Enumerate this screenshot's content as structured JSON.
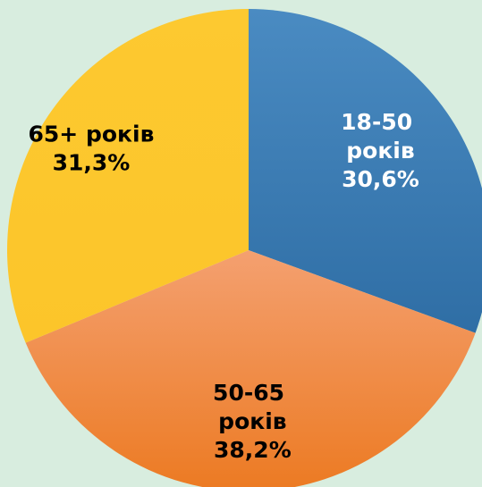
{
  "chart_data": {
    "type": "pie",
    "categories": [
      "18-50 років",
      "50-65 років",
      "65+ років"
    ],
    "values": [
      30.6,
      38.2,
      31.3
    ],
    "value_labels": [
      "30,6%",
      "38,2%",
      "31,3%"
    ],
    "colors": [
      "#3b7bb3",
      "#ef8538",
      "#fdc82f"
    ]
  }
}
